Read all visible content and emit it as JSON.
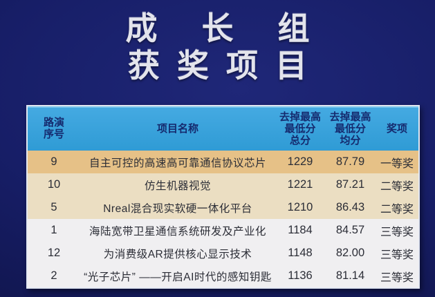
{
  "title": {
    "line1": "成长组",
    "line2": "获奖项目"
  },
  "colors": {
    "background": "#171e67",
    "header_bg": "#38a2db",
    "header_text": "#152a6e",
    "row_first_prize_bg": "#e6c187",
    "row_second_prize_bg": "#ebdec2",
    "row_third_prize_bg": "#f0eff1",
    "row_text": "#2b2d36",
    "table_border": "#e3e8f2",
    "title_text": "#e3e4ec"
  },
  "table": {
    "header": {
      "seq": [
        "路演",
        "序号"
      ],
      "name": "项目名称",
      "total": [
        "去掉最高",
        "最低分",
        "总分"
      ],
      "avg": [
        "去掉最高",
        "最低分",
        "均分"
      ],
      "award": "奖项"
    },
    "rows": [
      {
        "seq": "9",
        "name": "自主可控的高速高可靠通信协议芯片",
        "total": "1229",
        "avg": "87.79",
        "award": "一等奖",
        "tier": "first"
      },
      {
        "seq": "10",
        "name": "仿生机器视觉",
        "total": "1221",
        "avg": "87.21",
        "award": "二等奖",
        "tier": "second"
      },
      {
        "seq": "5",
        "name": "Nreal混合现实软硬一体化平台",
        "total": "1210",
        "avg": "86.43",
        "award": "二等奖",
        "tier": "second"
      },
      {
        "seq": "1",
        "name": "海陆宽带卫星通信系统研发及产业化",
        "total": "1184",
        "avg": "84.57",
        "award": "三等奖",
        "tier": "third"
      },
      {
        "seq": "12",
        "name": "为消费级AR提供核心显示技术",
        "total": "1148",
        "avg": "82.00",
        "award": "三等奖",
        "tier": "third"
      },
      {
        "seq": "2",
        "name": "“光子芯片” ——开启AI时代的感知钥匙",
        "total": "1136",
        "avg": "81.14",
        "award": "三等奖",
        "tier": "third"
      }
    ]
  }
}
